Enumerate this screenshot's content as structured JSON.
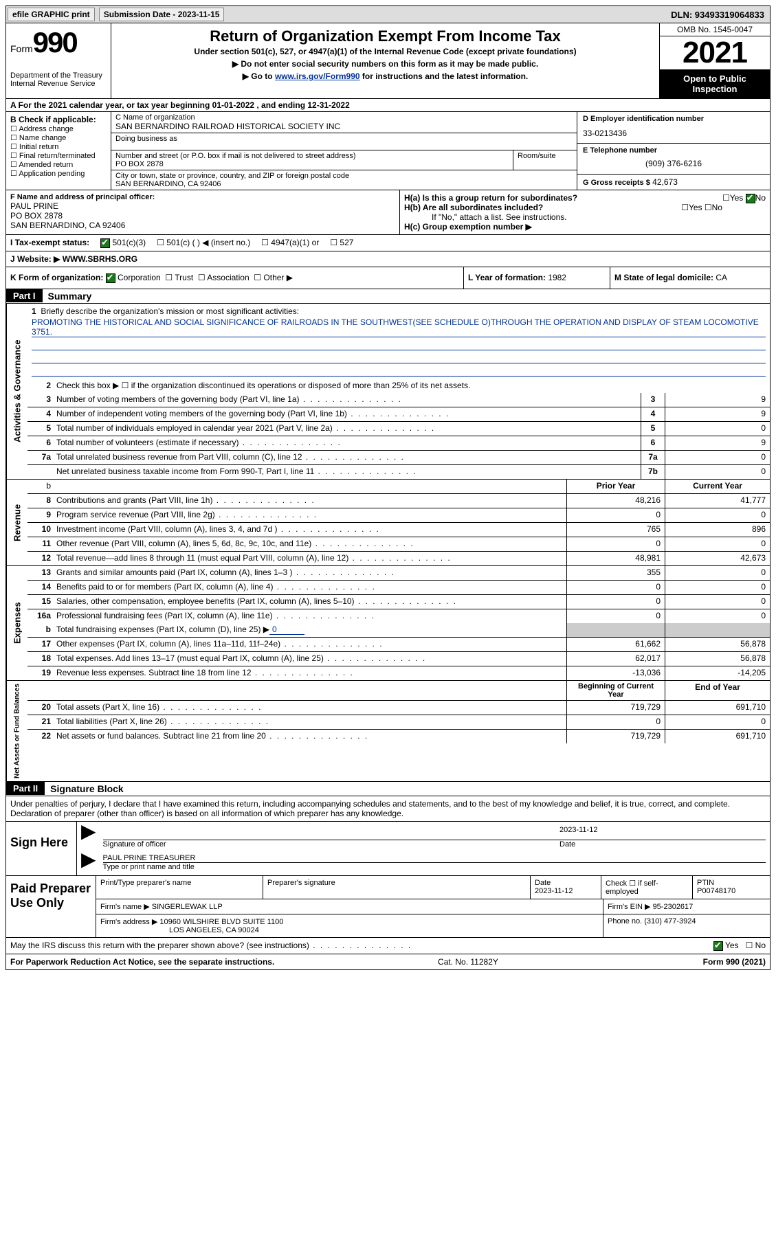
{
  "top": {
    "efile": "efile GRAPHIC print",
    "submission_label": "Submission Date - 2023-11-15",
    "dln": "DLN: 93493319064833"
  },
  "header": {
    "form_prefix": "Form",
    "form_num": "990",
    "dept": "Department of the Treasury Internal Revenue Service",
    "title": "Return of Organization Exempt From Income Tax",
    "sub1": "Under section 501(c), 527, or 4947(a)(1) of the Internal Revenue Code (except private foundations)",
    "sub2": "▶ Do not enter social security numbers on this form as it may be made public.",
    "sub3_prefix": "▶ Go to ",
    "sub3_link": "www.irs.gov/Form990",
    "sub3_suffix": " for instructions and the latest information.",
    "omb": "OMB No. 1545-0047",
    "year": "2021",
    "inspect": "Open to Public Inspection"
  },
  "row_a": "A For the 2021 calendar year, or tax year beginning 01-01-2022   , and ending 12-31-2022",
  "section_b": {
    "label": "B Check if applicable:",
    "opts": [
      "Address change",
      "Name change",
      "Initial return",
      "Final return/terminated",
      "Amended return",
      "Application pending"
    ]
  },
  "section_c": {
    "name_label": "C Name of organization",
    "org": "SAN BERNARDINO RAILROAD HISTORICAL SOCIETY INC",
    "dba": "Doing business as",
    "street_label": "Number and street (or P.O. box if mail is not delivered to street address)",
    "street": "PO BOX 2878",
    "room_label": "Room/suite",
    "city_label": "City or town, state or province, country, and ZIP or foreign postal code",
    "city": "SAN BERNARDINO, CA  92406"
  },
  "section_d": {
    "label": "D Employer identification number",
    "ein": "33-0213436"
  },
  "section_e": {
    "label": "E Telephone number",
    "tel": "(909) 376-6216"
  },
  "section_g": {
    "label": "G Gross receipts $",
    "val": "42,673"
  },
  "section_f": {
    "label": "F Name and address of principal officer:",
    "name": "PAUL PRINE",
    "addr1": "PO BOX 2878",
    "addr2": "SAN BERNARDINO, CA  92406"
  },
  "section_h": {
    "ha": "H(a)  Is this a group return for subordinates?",
    "hb": "H(b)  Are all subordinates included?",
    "hb_note": "If \"No,\" attach a list. See instructions.",
    "hc": "H(c)  Group exemption number ▶"
  },
  "tax_status": {
    "label": "I  Tax-exempt status:",
    "opt1": "501(c)(3)",
    "opt2": "501(c) (  ) ◀ (insert no.)",
    "opt3": "4947(a)(1) or",
    "opt4": "527"
  },
  "website": {
    "label": "J  Website: ▶",
    "val": "WWW.SBRHS.ORG"
  },
  "row_k": {
    "label": "K Form of organization:",
    "opts": [
      "Corporation",
      "Trust",
      "Association",
      "Other ▶"
    ],
    "l_label": "L Year of formation:",
    "l_val": "1982",
    "m_label": "M State of legal domicile:",
    "m_val": "CA"
  },
  "part1": {
    "header": "Part I",
    "title": "Summary"
  },
  "mission": {
    "num": "1",
    "label": "Briefly describe the organization's mission or most significant activities:",
    "text": "PROMOTING THE HISTORICAL AND SOCIAL SIGNIFICANCE OF RAILROADS IN THE SOUTHWEST(SEE SCHEDULE O)THROUGH THE OPERATION AND DISPLAY OF STEAM LOCOMOTIVE 3751."
  },
  "line2": {
    "num": "2",
    "text": "Check this box ▶ ☐ if the organization discontinued its operations or disposed of more than 25% of its net assets."
  },
  "gov_lines": [
    {
      "n": "3",
      "t": "Number of voting members of the governing body (Part VI, line 1a)",
      "box": "3",
      "v": "9"
    },
    {
      "n": "4",
      "t": "Number of independent voting members of the governing body (Part VI, line 1b)",
      "box": "4",
      "v": "9"
    },
    {
      "n": "5",
      "t": "Total number of individuals employed in calendar year 2021 (Part V, line 2a)",
      "box": "5",
      "v": "0"
    },
    {
      "n": "6",
      "t": "Total number of volunteers (estimate if necessary)",
      "box": "6",
      "v": "9"
    },
    {
      "n": "7a",
      "t": "Total unrelated business revenue from Part VIII, column (C), line 12",
      "box": "7a",
      "v": "0"
    },
    {
      "n": "",
      "t": "Net unrelated business taxable income from Form 990-T, Part I, line 11",
      "box": "7b",
      "v": "0"
    }
  ],
  "side_labels": {
    "gov": "Activities & Governance",
    "rev": "Revenue",
    "exp": "Expenses",
    "net": "Net Assets or Fund Balances"
  },
  "col_headers": {
    "prior": "Prior Year",
    "current": "Current Year",
    "beg": "Beginning of Current Year",
    "end": "End of Year"
  },
  "revenue": [
    {
      "n": "8",
      "t": "Contributions and grants (Part VIII, line 1h)",
      "p": "48,216",
      "c": "41,777"
    },
    {
      "n": "9",
      "t": "Program service revenue (Part VIII, line 2g)",
      "p": "0",
      "c": "0"
    },
    {
      "n": "10",
      "t": "Investment income (Part VIII, column (A), lines 3, 4, and 7d )",
      "p": "765",
      "c": "896"
    },
    {
      "n": "11",
      "t": "Other revenue (Part VIII, column (A), lines 5, 6d, 8c, 9c, 10c, and 11e)",
      "p": "0",
      "c": "0"
    },
    {
      "n": "12",
      "t": "Total revenue—add lines 8 through 11 (must equal Part VIII, column (A), line 12)",
      "p": "48,981",
      "c": "42,673"
    }
  ],
  "expenses": [
    {
      "n": "13",
      "t": "Grants and similar amounts paid (Part IX, column (A), lines 1–3 )",
      "p": "355",
      "c": "0"
    },
    {
      "n": "14",
      "t": "Benefits paid to or for members (Part IX, column (A), line 4)",
      "p": "0",
      "c": "0"
    },
    {
      "n": "15",
      "t": "Salaries, other compensation, employee benefits (Part IX, column (A), lines 5–10)",
      "p": "0",
      "c": "0"
    },
    {
      "n": "16a",
      "t": "Professional fundraising fees (Part IX, column (A), line 11e)",
      "p": "0",
      "c": "0"
    }
  ],
  "line16b": {
    "n": "b",
    "t": "Total fundraising expenses (Part IX, column (D), line 25) ▶",
    "v": "0"
  },
  "expenses2": [
    {
      "n": "17",
      "t": "Other expenses (Part IX, column (A), lines 11a–11d, 11f–24e)",
      "p": "61,662",
      "c": "56,878"
    },
    {
      "n": "18",
      "t": "Total expenses. Add lines 13–17 (must equal Part IX, column (A), line 25)",
      "p": "62,017",
      "c": "56,878"
    },
    {
      "n": "19",
      "t": "Revenue less expenses. Subtract line 18 from line 12",
      "p": "-13,036",
      "c": "-14,205"
    }
  ],
  "netassets": [
    {
      "n": "20",
      "t": "Total assets (Part X, line 16)",
      "p": "719,729",
      "c": "691,710"
    },
    {
      "n": "21",
      "t": "Total liabilities (Part X, line 26)",
      "p": "0",
      "c": "0"
    },
    {
      "n": "22",
      "t": "Net assets or fund balances. Subtract line 21 from line 20",
      "p": "719,729",
      "c": "691,710"
    }
  ],
  "part2": {
    "header": "Part II",
    "title": "Signature Block"
  },
  "sig_text": "Under penalties of perjury, I declare that I have examined this return, including accompanying schedules and statements, and to the best of my knowledge and belief, it is true, correct, and complete. Declaration of preparer (other than officer) is based on all information of which preparer has any knowledge.",
  "sign": {
    "label": "Sign Here",
    "sig_of": "Signature of officer",
    "date": "2023-11-12",
    "date_lbl": "Date",
    "name": "PAUL PRINE  TREASURER",
    "name_lbl": "Type or print name and title"
  },
  "paid": {
    "label": "Paid Preparer Use Only",
    "prep_name_lbl": "Print/Type preparer's name",
    "prep_sig_lbl": "Preparer's signature",
    "date_lbl": "Date",
    "date": "2023-11-12",
    "check_lbl": "Check ☐ if self-employed",
    "ptin_lbl": "PTIN",
    "ptin": "P00748170",
    "firm_name_lbl": "Firm's name     ▶",
    "firm_name": "SINGERLEWAK LLP",
    "firm_ein_lbl": "Firm's EIN ▶",
    "firm_ein": "95-2302617",
    "firm_addr_lbl": "Firm's address ▶",
    "firm_addr": "10960 WILSHIRE BLVD SUITE 1100",
    "firm_city": "LOS ANGELES, CA  90024",
    "phone_lbl": "Phone no.",
    "phone": "(310) 477-3924"
  },
  "discuss": "May the IRS discuss this return with the preparer shown above? (see instructions)",
  "footer": {
    "left": "For Paperwork Reduction Act Notice, see the separate instructions.",
    "mid": "Cat. No. 11282Y",
    "right": "Form 990 (2021)"
  },
  "yn": {
    "yes": "Yes",
    "no": "No"
  }
}
